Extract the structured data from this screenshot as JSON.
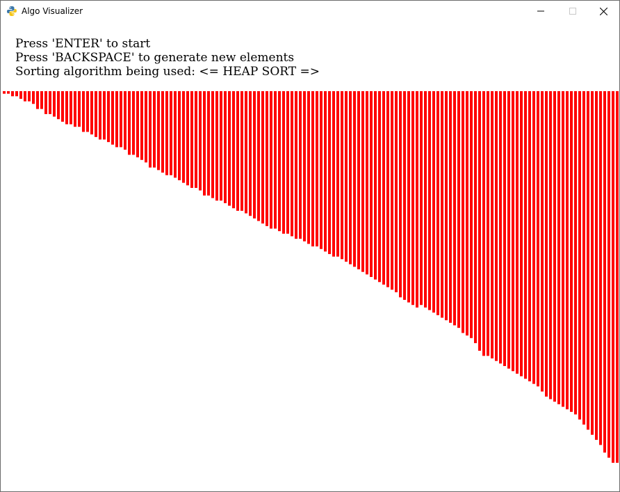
{
  "window": {
    "title": "Algo Visualizer",
    "icon": "python-logo-icon",
    "controls": [
      "minimize-icon",
      "maximize-icon",
      "close-icon"
    ]
  },
  "instructions": {
    "start": "Press 'ENTER' to start",
    "regenerate": "Press 'BACKSPACE' to generate new elements",
    "algorithm": "Sorting algorithm being used: <= HEAP SORT =>"
  },
  "colors": {
    "bar": "#ff0000",
    "background": "#ffffff"
  },
  "bars": {
    "count": 148,
    "values": [
      5,
      5,
      10,
      10,
      15,
      20,
      20,
      25,
      35,
      35,
      45,
      45,
      50,
      55,
      60,
      65,
      65,
      70,
      70,
      80,
      80,
      85,
      90,
      95,
      95,
      100,
      105,
      110,
      110,
      115,
      125,
      125,
      130,
      135,
      140,
      150,
      150,
      155,
      160,
      165,
      165,
      170,
      175,
      180,
      185,
      190,
      190,
      195,
      205,
      205,
      210,
      215,
      215,
      220,
      225,
      230,
      235,
      235,
      240,
      245,
      250,
      255,
      260,
      265,
      270,
      270,
      275,
      280,
      280,
      285,
      290,
      290,
      295,
      300,
      305,
      305,
      310,
      315,
      320,
      325,
      325,
      330,
      335,
      340,
      345,
      350,
      355,
      360,
      365,
      370,
      375,
      380,
      385,
      390,
      395,
      405,
      410,
      415,
      420,
      425,
      420,
      425,
      430,
      435,
      440,
      445,
      450,
      455,
      460,
      465,
      475,
      480,
      485,
      495,
      510,
      520,
      520,
      525,
      530,
      535,
      540,
      545,
      550,
      555,
      560,
      565,
      570,
      575,
      580,
      590,
      600,
      605,
      610,
      615,
      620,
      625,
      630,
      635,
      645,
      655,
      665,
      675,
      685,
      695,
      710,
      720,
      730,
      730
    ]
  }
}
